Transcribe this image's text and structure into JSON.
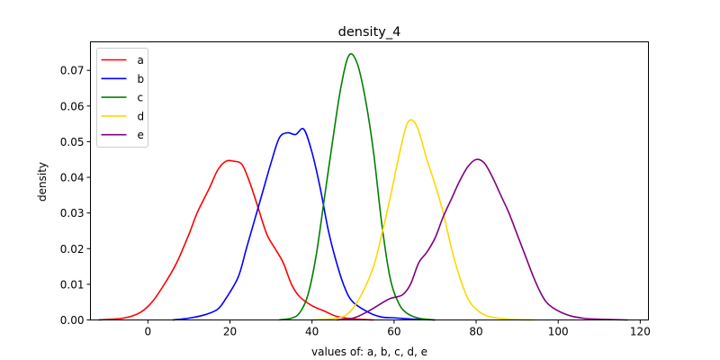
{
  "chart_data": {
    "type": "line",
    "title": "density_4",
    "xlabel": "values of: a, b, c, d, e",
    "ylabel": "density",
    "xlim": [
      -14,
      122
    ],
    "ylim": [
      0,
      0.078
    ],
    "xticks": [
      0,
      20,
      40,
      60,
      80,
      100,
      120
    ],
    "xtick_labels": [
      "0",
      "20",
      "40",
      "60",
      "80",
      "100",
      "120"
    ],
    "yticks": [
      0,
      0.01,
      0.02,
      0.03,
      0.04,
      0.05,
      0.06,
      0.07
    ],
    "ytick_labels": [
      "0.00",
      "0.01",
      "0.02",
      "0.03",
      "0.04",
      "0.05",
      "0.06",
      "0.07"
    ],
    "grid": false,
    "legend_position": "top-left",
    "series": [
      {
        "name": "a",
        "color": "#ff0000",
        "points": [
          [
            -12,
            0
          ],
          [
            -6,
            0.0005
          ],
          [
            -2,
            0.002
          ],
          [
            1,
            0.005
          ],
          [
            4,
            0.01
          ],
          [
            7,
            0.016
          ],
          [
            10,
            0.024
          ],
          [
            12,
            0.03
          ],
          [
            15,
            0.037
          ],
          [
            17,
            0.042
          ],
          [
            19,
            0.0445
          ],
          [
            21,
            0.0445
          ],
          [
            23,
            0.0435
          ],
          [
            25,
            0.038
          ],
          [
            27,
            0.031
          ],
          [
            29,
            0.024
          ],
          [
            31,
            0.02
          ],
          [
            33,
            0.016
          ],
          [
            35,
            0.01
          ],
          [
            37,
            0.0065
          ],
          [
            40,
            0.004
          ],
          [
            43,
            0.0025
          ],
          [
            46,
            0.001
          ],
          [
            50,
            0.0003
          ],
          [
            55,
            0
          ]
        ]
      },
      {
        "name": "b",
        "color": "#0000ff",
        "points": [
          [
            6,
            0
          ],
          [
            10,
            0.0005
          ],
          [
            14,
            0.0015
          ],
          [
            17,
            0.003
          ],
          [
            19,
            0.006
          ],
          [
            22,
            0.012
          ],
          [
            24,
            0.02
          ],
          [
            26,
            0.028
          ],
          [
            28,
            0.036
          ],
          [
            30,
            0.044
          ],
          [
            32,
            0.051
          ],
          [
            34,
            0.0525
          ],
          [
            36,
            0.052
          ],
          [
            38,
            0.0535
          ],
          [
            40,
            0.047
          ],
          [
            42,
            0.037
          ],
          [
            44,
            0.025
          ],
          [
            46,
            0.016
          ],
          [
            48,
            0.009
          ],
          [
            50,
            0.005
          ],
          [
            54,
            0.002
          ],
          [
            57,
            0.0008
          ],
          [
            60,
            0.0006
          ],
          [
            65,
            0.0002
          ],
          [
            70,
            0
          ]
        ]
      },
      {
        "name": "c",
        "color": "#008000",
        "points": [
          [
            32,
            0
          ],
          [
            35,
            0.0005
          ],
          [
            37,
            0.002
          ],
          [
            39,
            0.007
          ],
          [
            41,
            0.018
          ],
          [
            43,
            0.034
          ],
          [
            45,
            0.05
          ],
          [
            47,
            0.065
          ],
          [
            49,
            0.0742
          ],
          [
            51,
            0.072
          ],
          [
            53,
            0.062
          ],
          [
            55,
            0.047
          ],
          [
            57,
            0.027
          ],
          [
            59,
            0.012
          ],
          [
            61,
            0.005
          ],
          [
            63,
            0.002
          ],
          [
            66,
            0.0005
          ],
          [
            70,
            0
          ]
        ]
      },
      {
        "name": "d",
        "color": "#ffd700",
        "points": [
          [
            40,
            0
          ],
          [
            46,
            0.0005
          ],
          [
            49,
            0.002
          ],
          [
            52,
            0.007
          ],
          [
            55,
            0.015
          ],
          [
            57,
            0.024
          ],
          [
            59,
            0.034
          ],
          [
            61,
            0.045
          ],
          [
            63,
            0.0545
          ],
          [
            64.5,
            0.056
          ],
          [
            66,
            0.053
          ],
          [
            68,
            0.045
          ],
          [
            70,
            0.038
          ],
          [
            72,
            0.03
          ],
          [
            74,
            0.02
          ],
          [
            76,
            0.012
          ],
          [
            78,
            0.006
          ],
          [
            80,
            0.003
          ],
          [
            83,
            0.001
          ],
          [
            88,
            0.0002
          ],
          [
            94,
            0
          ]
        ]
      },
      {
        "name": "e",
        "color": "#800080",
        "points": [
          [
            46,
            0
          ],
          [
            50,
            0.0005
          ],
          [
            53,
            0.002
          ],
          [
            56,
            0.004
          ],
          [
            59,
            0.006
          ],
          [
            62,
            0.007
          ],
          [
            64,
            0.01
          ],
          [
            66,
            0.016
          ],
          [
            68,
            0.019
          ],
          [
            70,
            0.023
          ],
          [
            72,
            0.029
          ],
          [
            74,
            0.034
          ],
          [
            76,
            0.039
          ],
          [
            78,
            0.043
          ],
          [
            80,
            0.045
          ],
          [
            82,
            0.044
          ],
          [
            84,
            0.04
          ],
          [
            86,
            0.035
          ],
          [
            88,
            0.03
          ],
          [
            90,
            0.024
          ],
          [
            92,
            0.018
          ],
          [
            94,
            0.012
          ],
          [
            96,
            0.007
          ],
          [
            98,
            0.004
          ],
          [
            102,
            0.0015
          ],
          [
            106,
            0.0005
          ],
          [
            110,
            0.0002
          ],
          [
            117,
            0
          ]
        ]
      }
    ]
  }
}
